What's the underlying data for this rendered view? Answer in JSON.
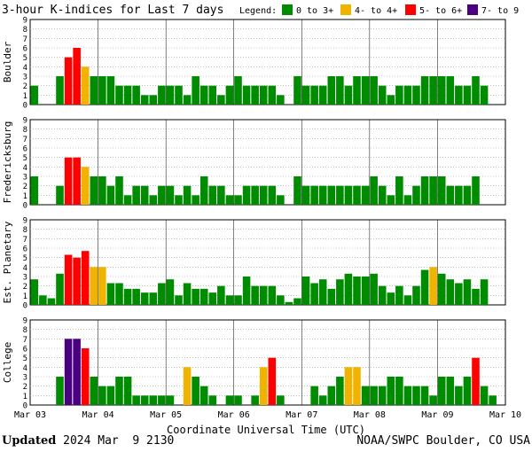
{
  "title": "3-hour K-indices for Last 7 days",
  "legend": {
    "label": "Legend:",
    "items": [
      {
        "label": "0 to 3+",
        "color": "#008c00"
      },
      {
        "label": "4- to 4+",
        "color": "#f0b400"
      },
      {
        "label": "5- to 6+",
        "color": "#ff0000"
      },
      {
        "label": "7- to 9",
        "color": "#4b0082"
      }
    ]
  },
  "footer": {
    "updated_label": "Updated",
    "updated_value": "2024 Mar  9 2130",
    "credit": "NOAA/SWPC Boulder, CO USA"
  },
  "chart_data": {
    "type": "bar",
    "xlabel": "Coordinate Universal Time (UTC)",
    "x_ticks": [
      "Mar 03",
      "Mar 04",
      "Mar 05",
      "Mar 06",
      "Mar 07",
      "Mar 08",
      "Mar 09",
      "Mar 10"
    ],
    "ylim": [
      0,
      9
    ],
    "y_ticks": [
      "0",
      "1",
      "2",
      "3",
      "4",
      "5",
      "6",
      "7",
      "8",
      "9"
    ],
    "bars_per_panel": 56,
    "grid": "horizontal dotted",
    "panels": [
      {
        "ylabel": "Boulder",
        "values": [
          2,
          0,
          0,
          3,
          5,
          6,
          4,
          3,
          3,
          3,
          2,
          2,
          2,
          1,
          1,
          2,
          2,
          2,
          1,
          3,
          2,
          2,
          1,
          2,
          3,
          2,
          2,
          2,
          2,
          1,
          0,
          3,
          2,
          2,
          2,
          3,
          3,
          2,
          3,
          3,
          3,
          2,
          1,
          2,
          2,
          2,
          3,
          3,
          3,
          3,
          2,
          2,
          3,
          2,
          0,
          0
        ]
      },
      {
        "ylabel": "Fredericksburg",
        "values": [
          3,
          0,
          0,
          2,
          5,
          5,
          4,
          3,
          3,
          2,
          3,
          1,
          2,
          2,
          1,
          2,
          2,
          1,
          2,
          1,
          3,
          2,
          2,
          1,
          1,
          2,
          2,
          2,
          2,
          1,
          0,
          3,
          2,
          2,
          2,
          2,
          2,
          2,
          2,
          2,
          3,
          2,
          1,
          3,
          1,
          2,
          3,
          3,
          3,
          2,
          2,
          2,
          3,
          0,
          0,
          0
        ]
      },
      {
        "ylabel": "Est. Planetary",
        "values": [
          2.7,
          1,
          0.7,
          3.3,
          5.3,
          5,
          5.7,
          4,
          4,
          2.3,
          2.3,
          1.7,
          1.7,
          1.3,
          1.3,
          2.3,
          2.7,
          1,
          2.3,
          1.7,
          1.7,
          1.3,
          2,
          1,
          1,
          3,
          2,
          2,
          2,
          1,
          0.3,
          0.7,
          3,
          2.3,
          2.7,
          1.7,
          2.7,
          3.3,
          3,
          3,
          3.3,
          2,
          1.3,
          2,
          1,
          2,
          3.7,
          4,
          3.3,
          2.7,
          2.3,
          2.7,
          1.7,
          2.7,
          0,
          0
        ]
      },
      {
        "ylabel": "College",
        "values": [
          0,
          0,
          0,
          3,
          7,
          7,
          6,
          3,
          2,
          2,
          3,
          3,
          1,
          1,
          1,
          1,
          1,
          0,
          4,
          3,
          2,
          1,
          0,
          1,
          1,
          0,
          1,
          4,
          5,
          1,
          0,
          0,
          0,
          2,
          1,
          2,
          3,
          4,
          4,
          2,
          2,
          2,
          3,
          3,
          2,
          2,
          2,
          1,
          3,
          3,
          2,
          3,
          5,
          2,
          1,
          0
        ]
      }
    ]
  }
}
